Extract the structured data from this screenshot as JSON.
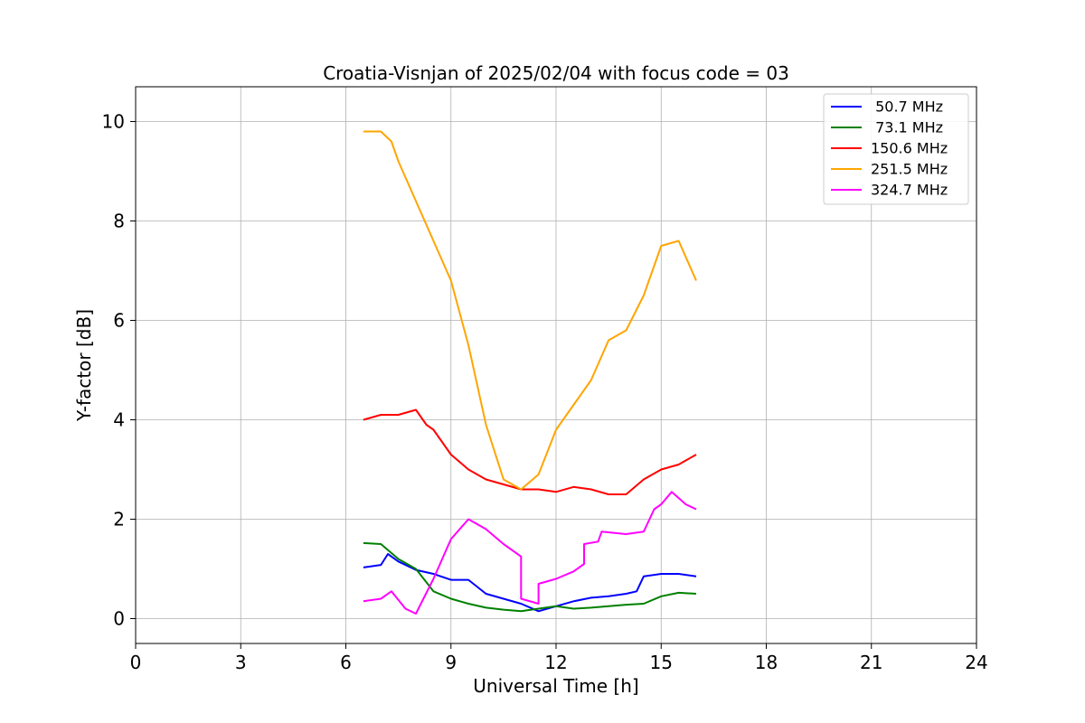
{
  "chart_data": {
    "type": "line",
    "title": "Croatia-Visnjan of 2025/02/04 with focus code = 03",
    "xlabel": "Universal Time [h]",
    "ylabel": "Y-factor [dB]",
    "xlim": [
      0,
      24
    ],
    "ylim": [
      -0.5,
      10.7
    ],
    "xticks": [
      0,
      3,
      6,
      9,
      12,
      15,
      18,
      21,
      24
    ],
    "yticks": [
      0,
      2,
      4,
      6,
      8,
      10
    ],
    "grid": true,
    "legend_position": "top-right",
    "series": [
      {
        "name": " 50.7 MHz",
        "color": "#0000ff",
        "points": [
          [
            6.5,
            1.03
          ],
          [
            7.0,
            1.08
          ],
          [
            7.2,
            1.3
          ],
          [
            7.5,
            1.15
          ],
          [
            8.0,
            0.98
          ],
          [
            8.5,
            0.9
          ],
          [
            9.0,
            0.78
          ],
          [
            9.5,
            0.78
          ],
          [
            10.0,
            0.5
          ],
          [
            10.5,
            0.4
          ],
          [
            11.0,
            0.3
          ],
          [
            11.5,
            0.15
          ],
          [
            12.0,
            0.25
          ],
          [
            12.5,
            0.35
          ],
          [
            13.0,
            0.42
          ],
          [
            13.5,
            0.45
          ],
          [
            14.0,
            0.5
          ],
          [
            14.3,
            0.55
          ],
          [
            14.5,
            0.85
          ],
          [
            15.0,
            0.9
          ],
          [
            15.5,
            0.9
          ],
          [
            16.0,
            0.85
          ]
        ]
      },
      {
        "name": " 73.1 MHz",
        "color": "#008000",
        "points": [
          [
            6.5,
            1.52
          ],
          [
            7.0,
            1.5
          ],
          [
            7.5,
            1.2
          ],
          [
            8.0,
            1.0
          ],
          [
            8.5,
            0.55
          ],
          [
            9.0,
            0.4
          ],
          [
            9.5,
            0.3
          ],
          [
            10.0,
            0.22
          ],
          [
            10.5,
            0.18
          ],
          [
            11.0,
            0.15
          ],
          [
            11.5,
            0.2
          ],
          [
            12.0,
            0.25
          ],
          [
            12.5,
            0.2
          ],
          [
            13.0,
            0.22
          ],
          [
            13.5,
            0.25
          ],
          [
            14.0,
            0.28
          ],
          [
            14.5,
            0.3
          ],
          [
            15.0,
            0.45
          ],
          [
            15.5,
            0.52
          ],
          [
            16.0,
            0.5
          ]
        ]
      },
      {
        "name": "150.6 MHz",
        "color": "#ff0000",
        "points": [
          [
            6.5,
            4.0
          ],
          [
            7.0,
            4.1
          ],
          [
            7.5,
            4.1
          ],
          [
            8.0,
            4.2
          ],
          [
            8.3,
            3.9
          ],
          [
            8.5,
            3.8
          ],
          [
            9.0,
            3.3
          ],
          [
            9.5,
            3.0
          ],
          [
            10.0,
            2.8
          ],
          [
            10.5,
            2.7
          ],
          [
            11.0,
            2.6
          ],
          [
            11.5,
            2.6
          ],
          [
            12.0,
            2.55
          ],
          [
            12.5,
            2.65
          ],
          [
            13.0,
            2.6
          ],
          [
            13.5,
            2.5
          ],
          [
            14.0,
            2.5
          ],
          [
            14.5,
            2.8
          ],
          [
            15.0,
            3.0
          ],
          [
            15.5,
            3.1
          ],
          [
            16.0,
            3.3
          ]
        ]
      },
      {
        "name": "251.5 MHz",
        "color": "#ffa500",
        "points": [
          [
            6.5,
            9.8
          ],
          [
            7.0,
            9.8
          ],
          [
            7.3,
            9.6
          ],
          [
            7.5,
            9.2
          ],
          [
            8.0,
            8.4
          ],
          [
            8.5,
            7.6
          ],
          [
            9.0,
            6.8
          ],
          [
            9.5,
            5.5
          ],
          [
            10.0,
            3.9
          ],
          [
            10.5,
            2.8
          ],
          [
            11.0,
            2.6
          ],
          [
            11.5,
            2.9
          ],
          [
            12.0,
            3.8
          ],
          [
            12.5,
            4.3
          ],
          [
            13.0,
            4.8
          ],
          [
            13.5,
            5.6
          ],
          [
            14.0,
            5.8
          ],
          [
            14.5,
            6.5
          ],
          [
            15.0,
            7.5
          ],
          [
            15.5,
            7.6
          ],
          [
            16.0,
            6.8
          ]
        ]
      },
      {
        "name": "324.7 MHz",
        "color": "#ff00ff",
        "points": [
          [
            6.5,
            0.35
          ],
          [
            7.0,
            0.4
          ],
          [
            7.3,
            0.55
          ],
          [
            7.7,
            0.2
          ],
          [
            8.0,
            0.1
          ],
          [
            8.5,
            0.8
          ],
          [
            9.0,
            1.6
          ],
          [
            9.5,
            2.0
          ],
          [
            10.0,
            1.8
          ],
          [
            10.5,
            1.5
          ],
          [
            11.0,
            1.25
          ],
          [
            11.0,
            0.4
          ],
          [
            11.5,
            0.3
          ],
          [
            11.5,
            0.7
          ],
          [
            12.0,
            0.8
          ],
          [
            12.5,
            0.95
          ],
          [
            12.8,
            1.1
          ],
          [
            12.8,
            1.5
          ],
          [
            13.2,
            1.55
          ],
          [
            13.3,
            1.75
          ],
          [
            14.0,
            1.7
          ],
          [
            14.5,
            1.75
          ],
          [
            14.8,
            2.2
          ],
          [
            15.0,
            2.3
          ],
          [
            15.3,
            2.55
          ],
          [
            15.7,
            2.3
          ],
          [
            16.0,
            2.2
          ]
        ]
      }
    ]
  }
}
